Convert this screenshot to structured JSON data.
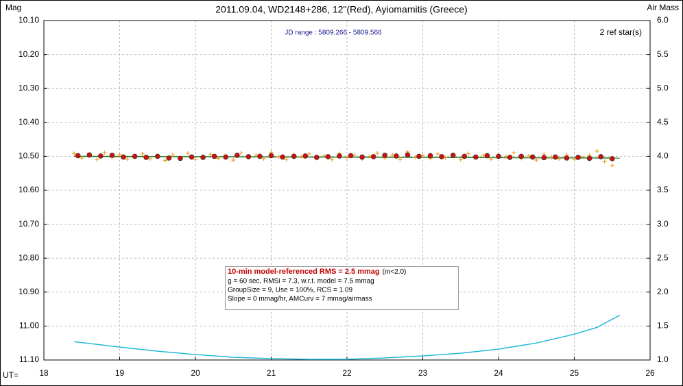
{
  "chart_data": {
    "type": "scatter",
    "title": "2011.09.04, WD2148+286, 12\"(Red), Ayiomamitis (Greece)",
    "y_label": "Mag",
    "y2_label": "Air Mass",
    "x_label": "UT=",
    "annotations": {
      "jd_range": "JD range : 5809.266 - 5809.566",
      "ref_stars": "2 ref star(s)",
      "rms_headline": "10-min model-referenced RMS = 2.5 mmag",
      "rms_condition": "(m<2.0)",
      "line2": "g = 60 sec, RMSi = 7.3, w.r.t. model = 7.5 mmag",
      "line3": "GroupSize = 9, Use = 100%, RCS = 1.09",
      "line4": "Slope = 0 mmag/hr, AMCurv = 7 mmag/airmass"
    },
    "xlim": [
      18,
      26
    ],
    "xticks": [
      18,
      19,
      20,
      21,
      22,
      23,
      24,
      25,
      26
    ],
    "ylim": [
      10.1,
      11.1
    ],
    "y_inverted": true,
    "yticks": [
      {
        "value": 10.1,
        "label": "10.10"
      },
      {
        "value": 10.2,
        "label": "10.20"
      },
      {
        "value": 10.3,
        "label": "10.30"
      },
      {
        "value": 10.4,
        "label": "10.40"
      },
      {
        "value": 10.5,
        "label": "10.50"
      },
      {
        "value": 10.6,
        "label": "10.60"
      },
      {
        "value": 10.7,
        "label": "10.70"
      },
      {
        "value": 10.8,
        "label": "10.80"
      },
      {
        "value": 10.9,
        "label": "10.90"
      },
      {
        "value": 11.0,
        "label": "11.00"
      },
      {
        "value": 11.1,
        "label": "11.10"
      }
    ],
    "y2lim": [
      1.0,
      6.0
    ],
    "y2ticks": [
      {
        "value": 1.0,
        "label": "1.0"
      },
      {
        "value": 1.5,
        "label": "1.5"
      },
      {
        "value": 2.0,
        "label": "2.0"
      },
      {
        "value": 2.5,
        "label": "2.5"
      },
      {
        "value": 3.0,
        "label": "3.0"
      },
      {
        "value": 3.5,
        "label": "3.5"
      },
      {
        "value": 4.0,
        "label": "4.0"
      },
      {
        "value": 4.5,
        "label": "4.5"
      },
      {
        "value": 5.0,
        "label": "5.0"
      },
      {
        "value": 5.5,
        "label": "5.5"
      },
      {
        "value": 6.0,
        "label": "6.0"
      }
    ],
    "grid": true,
    "series": [
      {
        "marker": "plus",
        "color": "#f0a020",
        "x": [
          18.4,
          18.5,
          18.6,
          18.7,
          18.8,
          18.9,
          19.0,
          19.1,
          19.2,
          19.3,
          19.4,
          19.5,
          19.6,
          19.7,
          19.8,
          19.9,
          20.0,
          20.1,
          20.2,
          20.3,
          20.4,
          20.5,
          20.6,
          20.7,
          20.8,
          20.9,
          21.0,
          21.1,
          21.2,
          21.3,
          21.4,
          21.5,
          21.6,
          21.7,
          21.8,
          21.9,
          22.0,
          22.1,
          22.2,
          22.3,
          22.4,
          22.5,
          22.6,
          22.7,
          22.8,
          22.9,
          23.0,
          23.1,
          23.2,
          23.3,
          23.4,
          23.5,
          23.6,
          23.7,
          23.8,
          23.9,
          24.0,
          24.1,
          24.2,
          24.3,
          24.4,
          24.5,
          24.6,
          24.7,
          24.8,
          24.9,
          25.0,
          25.1,
          25.2,
          25.3,
          25.4,
          25.5
        ],
        "values": [
          10.492,
          10.505,
          10.498,
          10.51,
          10.489,
          10.503,
          10.495,
          10.508,
          10.5,
          10.493,
          10.507,
          10.499,
          10.512,
          10.496,
          10.504,
          10.491,
          10.509,
          10.501,
          10.494,
          10.506,
          10.498,
          10.511,
          10.49,
          10.503,
          10.496,
          10.507,
          10.488,
          10.502,
          10.509,
          10.495,
          10.501,
          10.493,
          10.506,
          10.499,
          10.51,
          10.492,
          10.504,
          10.497,
          10.508,
          10.5,
          10.491,
          10.505,
          10.496,
          10.509,
          10.487,
          10.502,
          10.498,
          10.506,
          10.493,
          10.504,
          10.5,
          10.51,
          10.492,
          10.503,
          10.497,
          10.508,
          10.495,
          10.501,
          10.489,
          10.506,
          10.499,
          10.511,
          10.494,
          10.503,
          10.507,
          10.496,
          10.509,
          10.502,
          10.497,
          10.485,
          10.515,
          10.527
        ]
      },
      {
        "marker": "line",
        "color": "#1a7a1a",
        "x": [
          18.4,
          25.6
        ],
        "values": [
          10.5,
          10.505
        ]
      },
      {
        "marker": "dot",
        "color": "#cc1010",
        "x": [
          18.45,
          18.6,
          18.75,
          18.9,
          19.05,
          19.2,
          19.35,
          19.5,
          19.65,
          19.8,
          19.95,
          20.1,
          20.25,
          20.4,
          20.55,
          20.7,
          20.85,
          21,
          21.15,
          21.3,
          21.45,
          21.6,
          21.75,
          21.9,
          22.05,
          22.2,
          22.35,
          22.5,
          22.65,
          22.8,
          22.95,
          23.1,
          23.25,
          23.4,
          23.55,
          23.7,
          23.85,
          24,
          24.15,
          24.3,
          24.45,
          24.6,
          24.75,
          24.9,
          25.05,
          25.2,
          25.35,
          25.5
        ],
        "values": [
          10.498,
          10.496,
          10.499,
          10.497,
          10.502,
          10.5,
          10.503,
          10.5,
          10.505,
          10.506,
          10.502,
          10.503,
          10.5,
          10.502,
          10.497,
          10.501,
          10.5,
          10.498,
          10.502,
          10.5,
          10.499,
          10.503,
          10.501,
          10.499,
          10.498,
          10.502,
          10.501,
          10.497,
          10.499,
          10.496,
          10.5,
          10.498,
          10.501,
          10.497,
          10.5,
          10.502,
          10.498,
          10.5,
          10.503,
          10.5,
          10.502,
          10.504,
          10.502,
          10.505,
          10.503,
          10.506,
          10.501,
          10.507
        ]
      },
      {
        "marker": "line",
        "color": "#20b8d8",
        "axis": "y2",
        "x": [
          18.4,
          19,
          19.5,
          20,
          20.5,
          21,
          21.5,
          22,
          22.5,
          23,
          23.5,
          24,
          24.5,
          25,
          25.3,
          25.6
        ],
        "values": [
          1.27,
          1.19,
          1.13,
          1.08,
          1.04,
          1.02,
          1.01,
          1.01,
          1.03,
          1.06,
          1.1,
          1.16,
          1.25,
          1.38,
          1.48,
          1.66
        ]
      }
    ]
  }
}
